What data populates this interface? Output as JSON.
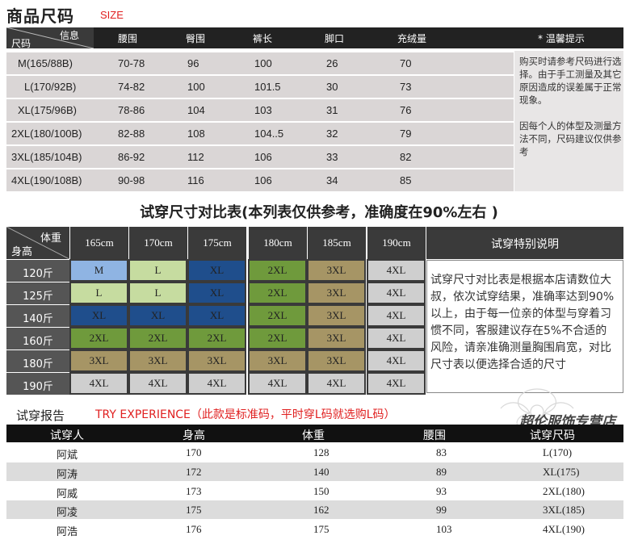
{
  "size_section": {
    "title": "商品尺码",
    "subtitle": "SIZE",
    "corner_top": "信息",
    "corner_bottom": "尺码",
    "columns": [
      "腰围",
      "臀围",
      "裤长",
      "脚口",
      "充绒量"
    ],
    "note_header": "* 温馨提示",
    "rows": [
      {
        "size": "M(165/88B)",
        "waist": "70-78",
        "hip": "96",
        "length": "100",
        "hem": "26",
        "fill": "70"
      },
      {
        "size": "L(170/92B)",
        "waist": "74-82",
        "hip": "100",
        "length": "101.5",
        "hem": "30",
        "fill": "73"
      },
      {
        "size": "XL(175/96B)",
        "waist": "78-86",
        "hip": "104",
        "length": "103",
        "hem": "31",
        "fill": "76"
      },
      {
        "size": "2XL(180/100B)",
        "waist": "82-88",
        "hip": "108",
        "length": "104..5",
        "hem": "32",
        "fill": "79"
      },
      {
        "size": "3XL(185/104B)",
        "waist": "86-92",
        "hip": "112",
        "length": "106",
        "hem": "33",
        "fill": "82"
      },
      {
        "size": "4XL(190/108B)",
        "waist": "90-98",
        "hip": "116",
        "length": "106",
        "hem": "34",
        "fill": "85"
      }
    ],
    "note_1": "购买时请参考尺码进行选择。由于手工测量及其它原因造成的误差属于正常现象。",
    "note_2": "因每个人的体型及测量方法不同，尺码建议仅供参考"
  },
  "fit_section": {
    "title": "试穿尺寸对比表(本列表仅供参考，准确度在90%左右 )",
    "corner_top": "体重",
    "corner_bottom": "身高",
    "heights": [
      "165cm",
      "170cm",
      "175cm",
      "180cm",
      "185cm",
      "190cm"
    ],
    "note_header": "试穿特别说明",
    "note_text": "试穿尺寸对比表是根据本店请数位大叔，依次试穿结果，准确率达到90%以上，由于每一位亲的体型与穿着习惯不同，客服建议存在5%不合适的风险，请亲准确测量胸围肩宽，对比尺寸表以便选择合适的尺寸",
    "weights": [
      "120斤",
      "125斤",
      "140斤",
      "160斤",
      "180斤",
      "190斤"
    ],
    "grid": [
      [
        "M",
        "L",
        "XL",
        "2XL",
        "3XL",
        "4XL"
      ],
      [
        "L",
        "L",
        "XL",
        "2XL",
        "3XL",
        "4XL"
      ],
      [
        "XL",
        "XL",
        "XL",
        "2XL",
        "3XL",
        "4XL"
      ],
      [
        "2XL",
        "2XL",
        "2XL",
        "2XL",
        "3XL",
        "4XL"
      ],
      [
        "3XL",
        "3XL",
        "3XL",
        "3XL",
        "3XL",
        "4XL"
      ],
      [
        "4XL",
        "4XL",
        "4XL",
        "4XL",
        "4XL",
        "4XL"
      ]
    ],
    "size_colors": {
      "M": "#8fb4e3",
      "L": "#c6dca0",
      "XL": "#1f4e8c",
      "2XL": "#6f9a3c",
      "3XL": "#a69565",
      "4XL": "#cfcfcf"
    },
    "watermark": "超伦服饰专营店"
  },
  "try_section": {
    "title": "试穿报告",
    "subtitle": "TRY EXPERIENCE（此款是标准码，平时穿L码就选购L码）",
    "columns": [
      "试穿人",
      "身高",
      "体重",
      "腰围",
      "试穿尺码"
    ],
    "rows": [
      {
        "name": "阿斌",
        "height": "170",
        "weight": "128",
        "waist": "83",
        "size": "L(170)"
      },
      {
        "name": "阿涛",
        "height": "172",
        "weight": "140",
        "waist": "89",
        "size": "XL(175)"
      },
      {
        "name": "阿威",
        "height": "173",
        "weight": "150",
        "waist": "93",
        "size": "2XL(180)"
      },
      {
        "name": "阿凌",
        "height": "175",
        "weight": "162",
        "waist": "99",
        "size": "3XL(185)"
      },
      {
        "name": "阿浩",
        "height": "176",
        "weight": "175",
        "waist": "103",
        "size": "4XL(190)"
      }
    ]
  }
}
